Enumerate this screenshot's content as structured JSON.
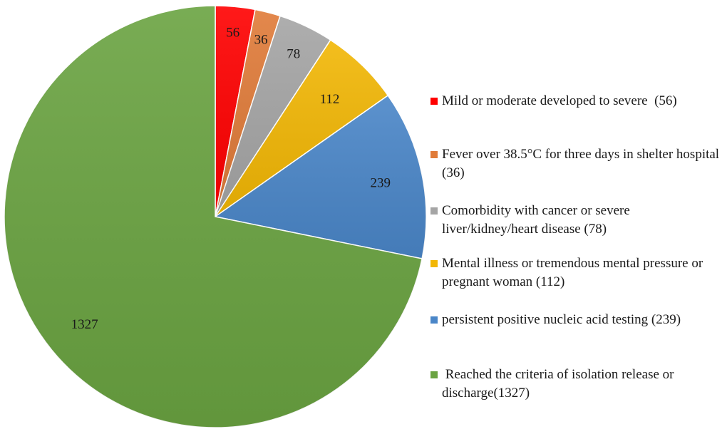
{
  "chart_data": {
    "type": "pie",
    "title": "",
    "start_angle_deg": 0,
    "direction": "clockwise",
    "slices": [
      {
        "label": "Mild or moderate developed to severe  (56)",
        "value": 56,
        "data_label": "56",
        "color": "#ff0000"
      },
      {
        "label": "Fever over 38.5°C for three days in shelter hospital (36)",
        "value": 36,
        "data_label": "36",
        "color": "#e07b39"
      },
      {
        "label": "Comorbidity with cancer or severe liver/kidney/heart disease (78)",
        "value": 78,
        "data_label": "78",
        "color": "#a5a5a5"
      },
      {
        "label": "Mental illness or tremendous mental pressure or pregnant woman (112)",
        "value": 112,
        "data_label": "112",
        "color": "#f2b705"
      },
      {
        "label": "persistent positive nucleic acid testing (239)",
        "value": 239,
        "data_label": "239",
        "color": "#4a86c8"
      },
      {
        "label": " Reached the criteria of isolation release or discharge(1327)",
        "value": 1327,
        "data_label": "1327",
        "color": "#6aa341"
      }
    ],
    "legend_position": "right"
  }
}
